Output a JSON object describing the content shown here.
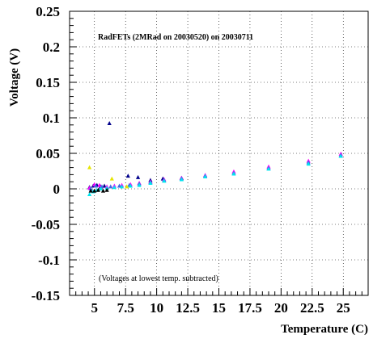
{
  "chart_data": {
    "type": "scatter",
    "title": "RadFETs (2MRad on 20030520) on 20030711",
    "annotation": "(Voltages at lowest temp. subtracted)",
    "xlabel": "Temperature (C)",
    "ylabel": "Voltage (V)",
    "xlim": [
      3.0,
      27.0
    ],
    "ylim": [
      -0.15,
      0.25
    ],
    "grid": true,
    "x_ticks": [
      5,
      7.5,
      10,
      12.5,
      15,
      17.5,
      20,
      22.5,
      25
    ],
    "x_tick_labels": [
      "5",
      "7.5",
      "10",
      "12.5",
      "15",
      "17.5",
      "20",
      "22.5",
      "25"
    ],
    "y_ticks": [
      -0.15,
      -0.1,
      -0.05,
      0,
      0.05,
      0.1,
      0.15,
      0.2,
      0.25
    ],
    "y_tick_labels": [
      "-0.15",
      "-0.1",
      "-0.05",
      "0",
      "0.05",
      "0.1",
      "0.15",
      "0.2",
      "0.25"
    ],
    "series": [
      {
        "color": "#00008b",
        "points": [
          [
            4.6,
            0.002
          ],
          [
            4.9,
            0.004
          ],
          [
            5.2,
            0.005
          ],
          [
            5.5,
            0.003
          ],
          [
            5.8,
            0.004
          ],
          [
            6.2,
            0.092
          ],
          [
            7.7,
            0.018
          ],
          [
            8.5,
            0.016
          ],
          [
            9.5,
            0.012
          ],
          [
            10.5,
            0.014
          ],
          [
            12.0,
            0.015
          ]
        ]
      },
      {
        "color": "#ff00ff",
        "points": [
          [
            4.6,
            0.001
          ],
          [
            5.0,
            0.006
          ],
          [
            5.4,
            0.005
          ],
          [
            6.0,
            0.003
          ],
          [
            6.6,
            0.004
          ],
          [
            7.2,
            0.005
          ],
          [
            7.9,
            0.006
          ],
          [
            8.6,
            0.008
          ],
          [
            9.5,
            0.01
          ],
          [
            10.6,
            0.013
          ],
          [
            12.0,
            0.015
          ],
          [
            13.9,
            0.019
          ],
          [
            16.2,
            0.024
          ],
          [
            19.0,
            0.031
          ],
          [
            22.2,
            0.039
          ],
          [
            24.8,
            0.049
          ]
        ]
      },
      {
        "color": "#4169e1",
        "points": [
          [
            4.7,
            0.0
          ],
          [
            5.1,
            0.004
          ],
          [
            5.6,
            0.003
          ],
          [
            6.3,
            0.003
          ],
          [
            7.0,
            0.004
          ],
          [
            7.8,
            0.005
          ],
          [
            8.6,
            0.007
          ],
          [
            9.5,
            0.009
          ],
          [
            10.6,
            0.012
          ],
          [
            12.0,
            0.014
          ],
          [
            13.9,
            0.018
          ],
          [
            16.2,
            0.022
          ],
          [
            19.0,
            0.029
          ],
          [
            22.2,
            0.037
          ],
          [
            24.8,
            0.047
          ]
        ]
      },
      {
        "color": "#00e5ee",
        "points": [
          [
            4.6,
            -0.008
          ],
          [
            4.9,
            -0.004
          ],
          [
            5.2,
            -0.002
          ],
          [
            5.5,
            0.0
          ],
          [
            6.0,
            0.001
          ],
          [
            6.6,
            0.002
          ],
          [
            7.2,
            0.003
          ],
          [
            7.9,
            0.004
          ],
          [
            8.6,
            0.005
          ],
          [
            9.5,
            0.008
          ],
          [
            10.6,
            0.011
          ],
          [
            12.0,
            0.013
          ],
          [
            13.9,
            0.017
          ],
          [
            16.2,
            0.021
          ],
          [
            19.0,
            0.028
          ],
          [
            22.2,
            0.035
          ],
          [
            24.8,
            0.046
          ]
        ]
      },
      {
        "color": "#e5e500",
        "points": [
          [
            4.6,
            0.03
          ],
          [
            6.4,
            0.014
          ],
          [
            7.6,
            0.003
          ]
        ]
      },
      {
        "color": "#000000",
        "points": [
          [
            4.7,
            -0.003
          ],
          [
            5.0,
            -0.003
          ],
          [
            5.3,
            -0.002
          ],
          [
            5.7,
            -0.003
          ],
          [
            6.0,
            -0.002
          ]
        ]
      }
    ]
  }
}
